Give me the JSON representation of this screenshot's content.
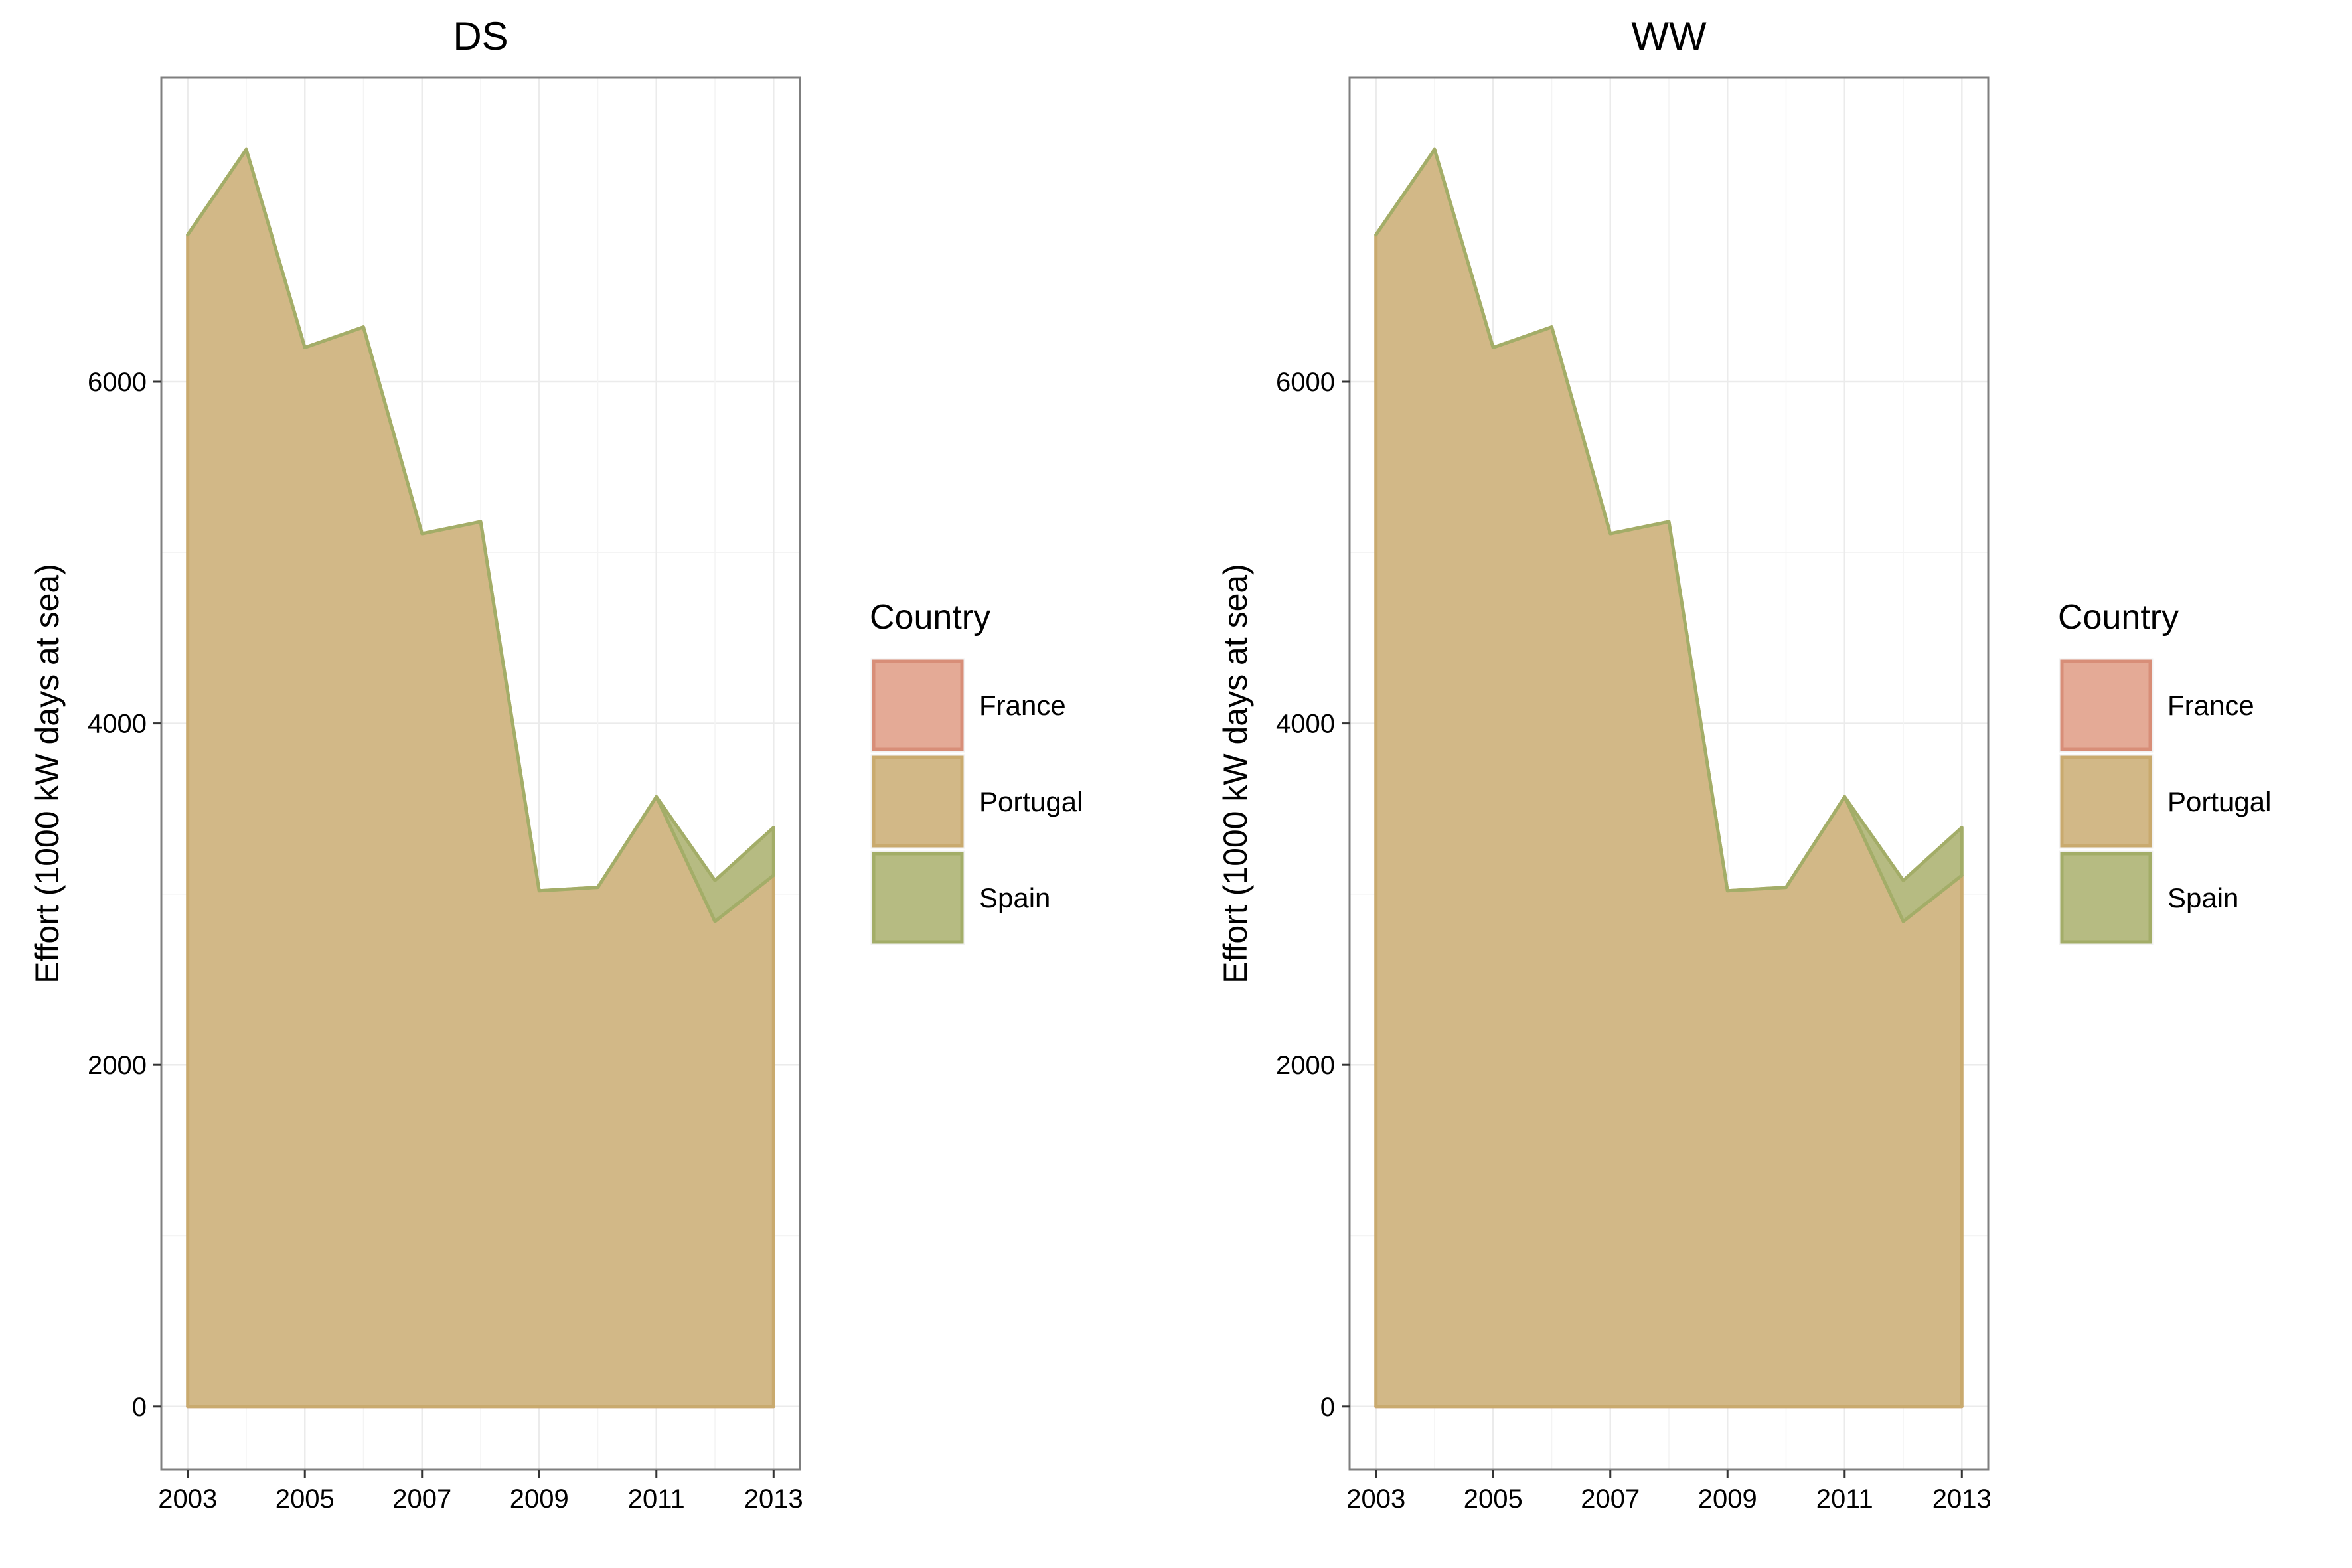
{
  "chart_data": [
    {
      "type": "area",
      "title": "DS",
      "xlabel": "",
      "ylabel": "Effort (1000 kW days at sea)",
      "x": [
        2003,
        2004,
        2005,
        2006,
        2007,
        2008,
        2009,
        2010,
        2011,
        2012,
        2013
      ],
      "xticks": [
        "2003",
        "2005",
        "2007",
        "2009",
        "2011",
        "2013"
      ],
      "yticks": [
        "0",
        "2000",
        "4000",
        "6000"
      ],
      "xlim": [
        2002.55,
        2013.45
      ],
      "ylim": [
        -370,
        7780
      ],
      "stacked": true,
      "grid": true,
      "legend": {
        "title": "Country",
        "position": "right"
      },
      "series": [
        {
          "name": "France",
          "color": "#e4aa96",
          "stroke": "#d88e78",
          "values": [
            0,
            0,
            0,
            0,
            0,
            0,
            0,
            0,
            0,
            0,
            0
          ]
        },
        {
          "name": "Portugal",
          "color": "#d2b887",
          "stroke": "#c9aa6e",
          "values": [
            6860,
            7360,
            6200,
            6320,
            5110,
            5180,
            3020,
            3040,
            3570,
            2840,
            3110
          ]
        },
        {
          "name": "Spain",
          "color": "#b6bb82",
          "stroke": "#a3ad68",
          "values": [
            0,
            0,
            0,
            0,
            0,
            0,
            0,
            0,
            0,
            240,
            280
          ]
        }
      ]
    },
    {
      "type": "area",
      "title": "WW",
      "xlabel": "",
      "ylabel": "Effort (1000 kW days at sea)",
      "x": [
        2003,
        2004,
        2005,
        2006,
        2007,
        2008,
        2009,
        2010,
        2011,
        2012,
        2013
      ],
      "xticks": [
        "2003",
        "2005",
        "2007",
        "2009",
        "2011",
        "2013"
      ],
      "yticks": [
        "0",
        "2000",
        "4000",
        "6000"
      ],
      "xlim": [
        2002.55,
        2013.45
      ],
      "ylim": [
        -370,
        7780
      ],
      "stacked": true,
      "grid": true,
      "legend": {
        "title": "Country",
        "position": "right"
      },
      "series": [
        {
          "name": "France",
          "color": "#e4aa96",
          "stroke": "#d88e78",
          "values": [
            0,
            0,
            0,
            0,
            0,
            0,
            0,
            0,
            0,
            0,
            0
          ]
        },
        {
          "name": "Portugal",
          "color": "#d2b887",
          "stroke": "#c9aa6e",
          "values": [
            6860,
            7360,
            6200,
            6320,
            5110,
            5180,
            3020,
            3040,
            3570,
            2840,
            3110
          ]
        },
        {
          "name": "Spain",
          "color": "#b6bb82",
          "stroke": "#a3ad68",
          "values": [
            0,
            0,
            0,
            0,
            0,
            0,
            0,
            0,
            0,
            240,
            280
          ]
        }
      ]
    }
  ]
}
